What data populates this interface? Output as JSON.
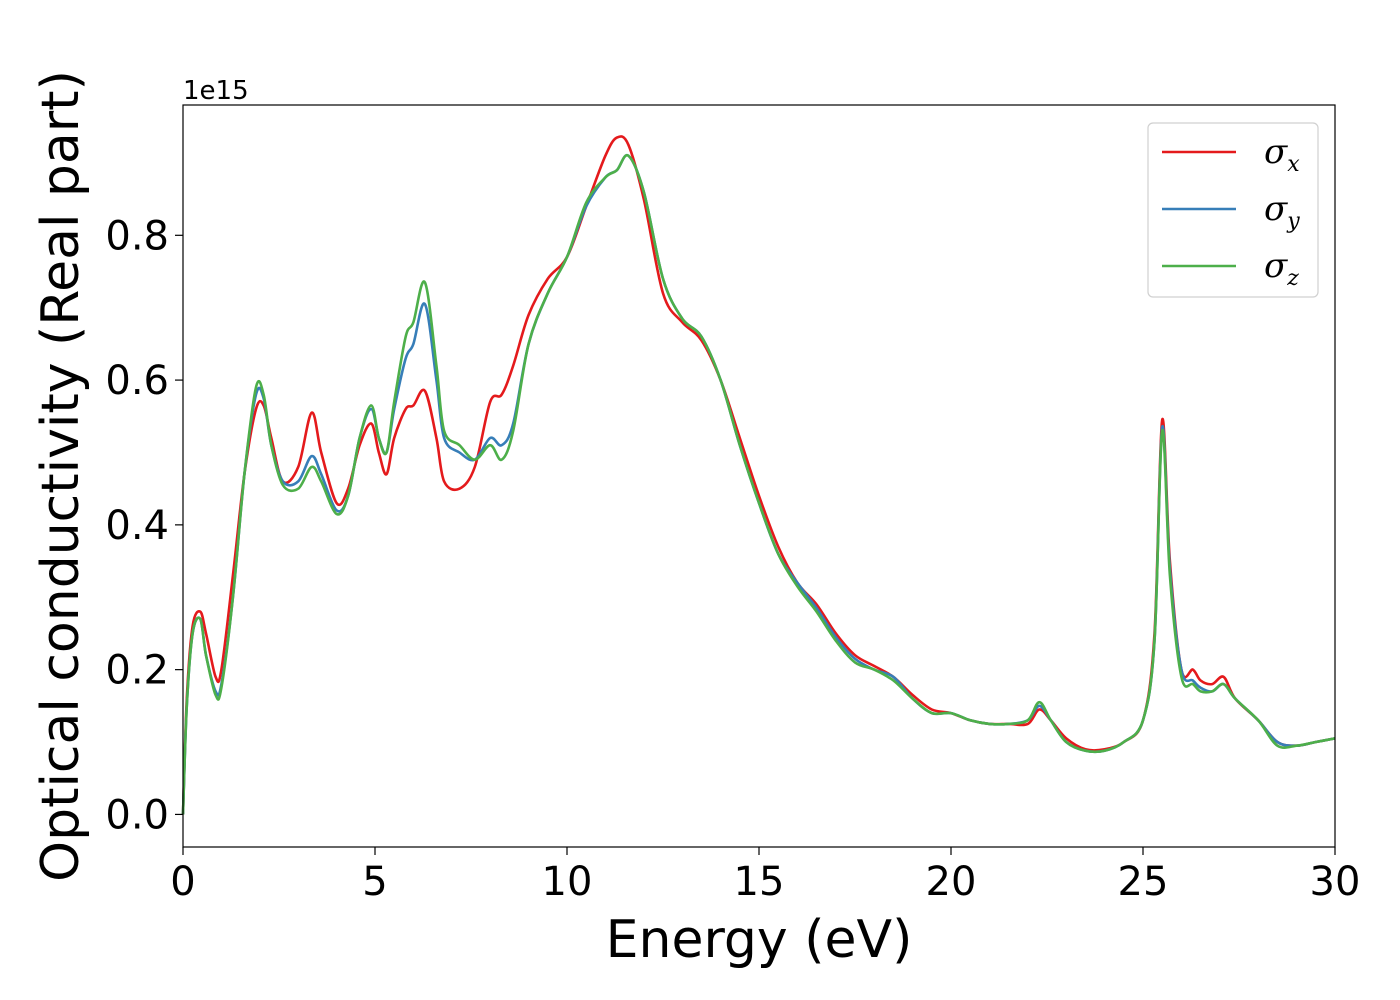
{
  "chart_data": {
    "type": "line",
    "xlabel": "Energy (eV)",
    "ylabel": "Optical conductivity (Real part)",
    "y_offset_label": "1e15",
    "xlim": [
      0,
      30
    ],
    "ylim": [
      -0.045,
      0.98
    ],
    "xticks": [
      0,
      5,
      10,
      15,
      20,
      25,
      30
    ],
    "xtick_labels": [
      "0",
      "5",
      "10",
      "15",
      "20",
      "25",
      "30"
    ],
    "yticks": [
      0.0,
      0.2,
      0.4,
      0.6,
      0.8
    ],
    "ytick_labels": [
      "0.0",
      "0.2",
      "0.4",
      "0.6",
      "0.8"
    ],
    "grid": false,
    "legend_position": "top-right",
    "series": [
      {
        "name": "σx",
        "symbol": "σ",
        "subscript": "x",
        "color": "#e41a1c",
        "x": [
          0,
          0.1,
          0.25,
          0.45,
          0.6,
          0.85,
          1.0,
          1.3,
          1.6,
          1.9,
          2.1,
          2.3,
          2.6,
          3.0,
          3.35,
          3.6,
          4.0,
          4.3,
          4.6,
          4.9,
          5.1,
          5.3,
          5.5,
          5.8,
          6.0,
          6.3,
          6.6,
          6.8,
          7.2,
          7.6,
          8.0,
          8.3,
          8.6,
          9.0,
          9.5,
          10.0,
          10.5,
          11.0,
          11.3,
          11.6,
          12.0,
          12.5,
          13.0,
          13.5,
          14.0,
          14.5,
          15.0,
          15.5,
          16.0,
          16.5,
          17.0,
          17.5,
          18.0,
          18.5,
          19.0,
          19.5,
          20.0,
          20.5,
          21.0,
          21.5,
          22.0,
          22.3,
          22.6,
          23.0,
          23.5,
          24.0,
          24.5,
          25.0,
          25.3,
          25.5,
          25.7,
          26.0,
          26.3,
          26.5,
          26.8,
          27.1,
          27.4,
          28.0,
          28.5,
          29.0,
          29.5,
          30.0
        ],
        "y": [
          0.0,
          0.16,
          0.26,
          0.28,
          0.25,
          0.19,
          0.2,
          0.33,
          0.47,
          0.56,
          0.565,
          0.52,
          0.46,
          0.48,
          0.555,
          0.5,
          0.43,
          0.45,
          0.51,
          0.54,
          0.5,
          0.47,
          0.52,
          0.56,
          0.565,
          0.585,
          0.52,
          0.46,
          0.45,
          0.48,
          0.57,
          0.58,
          0.62,
          0.69,
          0.74,
          0.77,
          0.84,
          0.91,
          0.935,
          0.925,
          0.85,
          0.72,
          0.68,
          0.655,
          0.6,
          0.52,
          0.44,
          0.37,
          0.32,
          0.29,
          0.25,
          0.22,
          0.205,
          0.19,
          0.165,
          0.145,
          0.14,
          0.13,
          0.125,
          0.125,
          0.125,
          0.145,
          0.13,
          0.105,
          0.09,
          0.09,
          0.1,
          0.13,
          0.25,
          0.545,
          0.35,
          0.2,
          0.2,
          0.185,
          0.18,
          0.19,
          0.16,
          0.13,
          0.1,
          0.095,
          0.1,
          0.105
        ]
      },
      {
        "name": "σy",
        "symbol": "σ",
        "subscript": "y",
        "color": "#377eb8",
        "x": [
          0,
          0.1,
          0.25,
          0.45,
          0.6,
          0.85,
          1.0,
          1.3,
          1.6,
          1.9,
          2.1,
          2.3,
          2.6,
          3.0,
          3.35,
          3.6,
          4.0,
          4.3,
          4.6,
          4.9,
          5.1,
          5.3,
          5.5,
          5.8,
          6.0,
          6.3,
          6.6,
          6.8,
          7.2,
          7.6,
          8.0,
          8.3,
          8.6,
          9.0,
          9.5,
          10.0,
          10.5,
          11.0,
          11.3,
          11.6,
          12.0,
          12.5,
          13.0,
          13.5,
          14.0,
          14.5,
          15.0,
          15.5,
          16.0,
          16.5,
          17.0,
          17.5,
          18.0,
          18.5,
          19.0,
          19.5,
          20.0,
          20.5,
          21.0,
          21.5,
          22.0,
          22.3,
          22.6,
          23.0,
          23.5,
          24.0,
          24.5,
          25.0,
          25.3,
          25.5,
          25.7,
          26.0,
          26.3,
          26.5,
          26.8,
          27.1,
          27.4,
          28.0,
          28.5,
          29.0,
          29.5,
          30.0
        ],
        "y": [
          0.0,
          0.15,
          0.25,
          0.27,
          0.22,
          0.17,
          0.18,
          0.3,
          0.47,
          0.58,
          0.575,
          0.51,
          0.46,
          0.46,
          0.495,
          0.47,
          0.42,
          0.44,
          0.52,
          0.56,
          0.52,
          0.5,
          0.56,
          0.63,
          0.65,
          0.705,
          0.6,
          0.52,
          0.5,
          0.49,
          0.52,
          0.51,
          0.54,
          0.65,
          0.72,
          0.77,
          0.84,
          0.88,
          0.89,
          0.91,
          0.86,
          0.74,
          0.685,
          0.66,
          0.6,
          0.51,
          0.43,
          0.36,
          0.32,
          0.285,
          0.245,
          0.215,
          0.2,
          0.19,
          0.16,
          0.14,
          0.14,
          0.13,
          0.125,
          0.125,
          0.13,
          0.15,
          0.13,
          0.1,
          0.088,
          0.088,
          0.1,
          0.13,
          0.24,
          0.535,
          0.34,
          0.2,
          0.185,
          0.175,
          0.17,
          0.18,
          0.16,
          0.13,
          0.1,
          0.095,
          0.1,
          0.105
        ]
      },
      {
        "name": "σz",
        "symbol": "σ",
        "subscript": "z",
        "color": "#4daf4a",
        "x": [
          0,
          0.1,
          0.25,
          0.45,
          0.6,
          0.85,
          1.0,
          1.3,
          1.6,
          1.9,
          2.1,
          2.3,
          2.6,
          3.0,
          3.35,
          3.6,
          4.0,
          4.3,
          4.6,
          4.9,
          5.1,
          5.3,
          5.5,
          5.8,
          6.0,
          6.3,
          6.6,
          6.8,
          7.2,
          7.6,
          8.0,
          8.3,
          8.6,
          9.0,
          9.5,
          10.0,
          10.5,
          11.0,
          11.3,
          11.6,
          12.0,
          12.5,
          13.0,
          13.5,
          14.0,
          14.5,
          15.0,
          15.5,
          16.0,
          16.5,
          17.0,
          17.5,
          18.0,
          18.5,
          19.0,
          19.5,
          20.0,
          20.5,
          21.0,
          21.5,
          22.0,
          22.3,
          22.6,
          23.0,
          23.5,
          24.0,
          24.5,
          25.0,
          25.3,
          25.5,
          25.7,
          26.0,
          26.3,
          26.5,
          26.8,
          27.1,
          27.4,
          28.0,
          28.5,
          29.0,
          29.5,
          30.0
        ],
        "y": [
          0.0,
          0.15,
          0.25,
          0.27,
          0.22,
          0.165,
          0.175,
          0.3,
          0.47,
          0.59,
          0.58,
          0.51,
          0.455,
          0.45,
          0.48,
          0.46,
          0.415,
          0.44,
          0.52,
          0.565,
          0.52,
          0.5,
          0.57,
          0.66,
          0.68,
          0.735,
          0.62,
          0.53,
          0.51,
          0.49,
          0.51,
          0.49,
          0.53,
          0.65,
          0.72,
          0.77,
          0.845,
          0.88,
          0.89,
          0.91,
          0.86,
          0.74,
          0.685,
          0.66,
          0.6,
          0.51,
          0.43,
          0.36,
          0.315,
          0.28,
          0.24,
          0.21,
          0.2,
          0.185,
          0.16,
          0.14,
          0.14,
          0.13,
          0.125,
          0.125,
          0.13,
          0.155,
          0.13,
          0.1,
          0.088,
          0.088,
          0.1,
          0.13,
          0.24,
          0.53,
          0.33,
          0.19,
          0.18,
          0.17,
          0.17,
          0.18,
          0.16,
          0.13,
          0.095,
          0.095,
          0.1,
          0.105
        ]
      }
    ]
  }
}
